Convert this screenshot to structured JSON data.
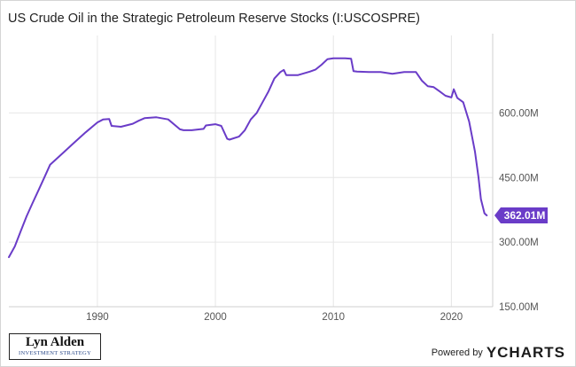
{
  "chart_data": {
    "type": "line",
    "title": "US Crude Oil in the Strategic Petroleum Reserve Stocks (I:USCOSPRE)",
    "xlim": [
      1982.5,
      2023.5
    ],
    "ylim": [
      150,
      780
    ],
    "x_ticks": [
      1990,
      2000,
      2010,
      2020
    ],
    "x_tick_labels": [
      "1990",
      "2000",
      "2010",
      "2020"
    ],
    "y_ticks": [
      150,
      300,
      450,
      600
    ],
    "y_tick_labels": [
      "150.00M",
      "300.00M",
      "450.00M",
      "600.00M"
    ],
    "grid": true,
    "line_color": "#6a3cc8",
    "series": [
      {
        "x": [
          1982.5,
          1983.0,
          1983.5,
          1984.0,
          1984.5,
          1985.0,
          1985.5,
          1986.0,
          1987.0,
          1988.0,
          1989.0,
          1990.0,
          1990.5,
          1991.0,
          1991.2,
          1992.0,
          1993.0,
          1993.5,
          1994.0,
          1995.0,
          1996.0,
          1997.0,
          1997.3,
          1998.0,
          1999.0,
          1999.2,
          2000.0,
          2000.5,
          2001.0,
          2001.2,
          2002.0,
          2002.5,
          2003.0,
          2003.5,
          2004.0,
          2004.5,
          2005.0,
          2005.5,
          2005.8,
          2006.0,
          2007.0,
          2008.0,
          2008.5,
          2009.0,
          2009.5,
          2010.0,
          2011.0,
          2011.5,
          2011.7,
          2012.0,
          2013.0,
          2014.0,
          2015.0,
          2016.0,
          2017.0,
          2017.5,
          2018.0,
          2018.5,
          2019.0,
          2019.5,
          2020.0,
          2020.2,
          2020.5,
          2021.0,
          2021.5,
          2022.0,
          2022.3,
          2022.5,
          2022.8,
          2023.0
        ],
        "y": [
          265,
          290,
          325,
          360,
          390,
          420,
          450,
          480,
          505,
          530,
          555,
          578,
          585,
          586,
          570,
          568,
          575,
          582,
          588,
          590,
          585,
          562,
          560,
          560,
          563,
          571,
          574,
          570,
          540,
          538,
          545,
          560,
          585,
          600,
          625,
          650,
          680,
          695,
          700,
          688,
          688,
          696,
          701,
          712,
          725,
          727,
          727,
          726,
          697,
          696,
          695,
          695,
          691,
          695,
          695,
          675,
          662,
          660,
          650,
          640,
          636,
          655,
          635,
          625,
          580,
          510,
          450,
          400,
          367,
          362
        ]
      }
    ],
    "last_value_label": "362.01M",
    "last_value": 362.01
  },
  "footer": {
    "logo_name": "Lyn Alden",
    "logo_sub": "INVESTMENT STRATEGY",
    "powered_by": "Powered by",
    "brand_y": "Y",
    "brand_rest": "CHARTS"
  },
  "colors": {
    "line": "#6a3cc8",
    "badge": "#6a3cc8",
    "grid": "#e6e6e6",
    "axis_text": "#555555"
  }
}
